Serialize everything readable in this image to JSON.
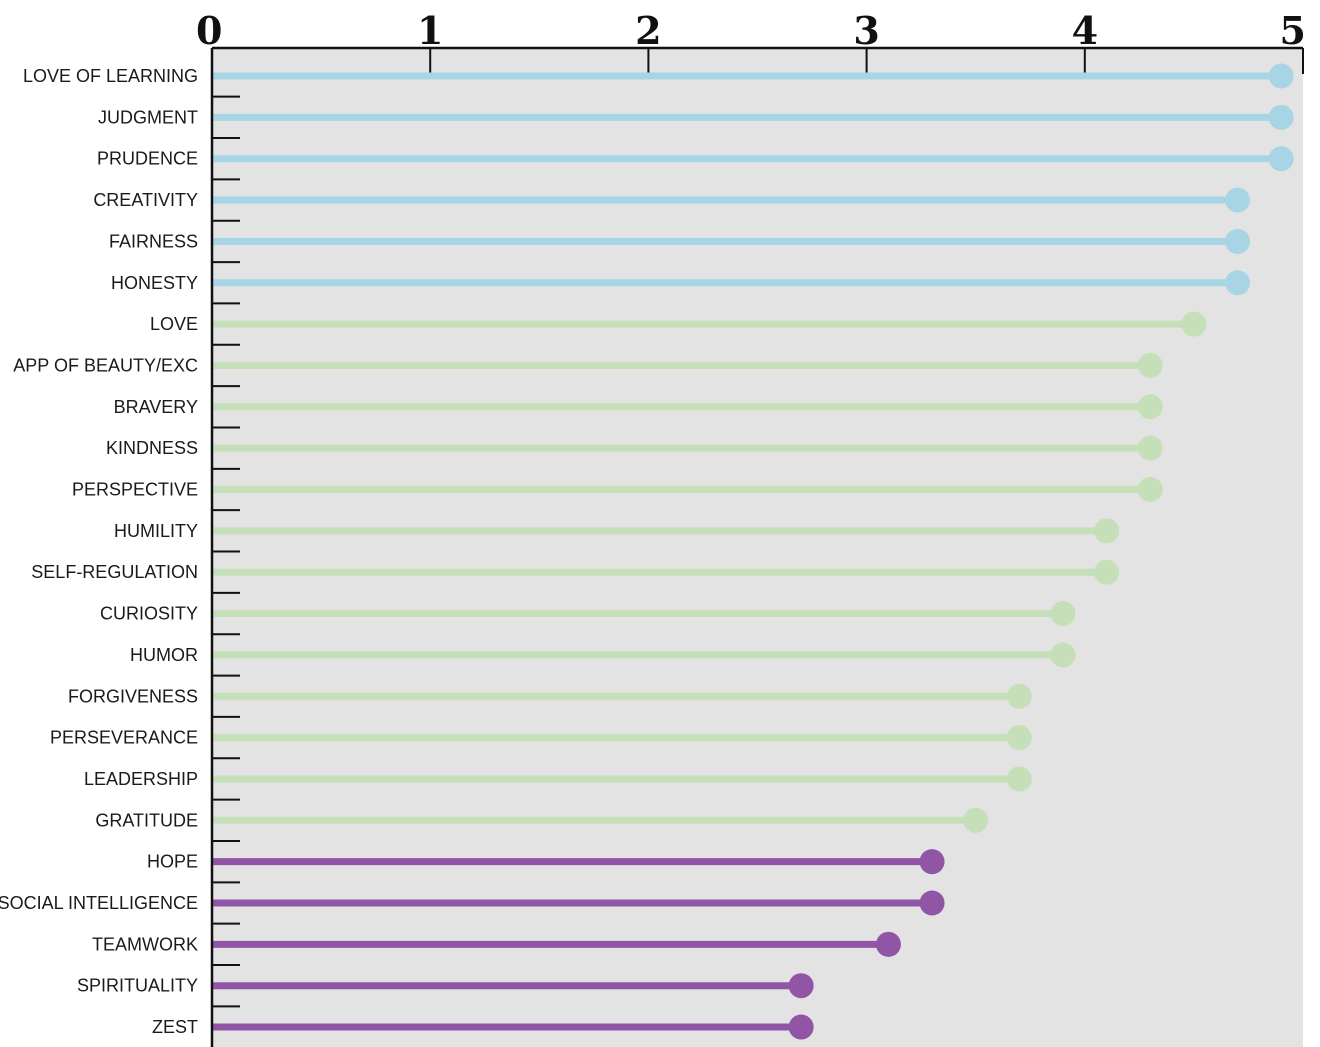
{
  "chart_data": {
    "type": "lollipop",
    "categories": [
      "LOVE OF LEARNING",
      "JUDGMENT",
      "PRUDENCE",
      "CREATIVITY",
      "FAIRNESS",
      "HONESTY",
      "LOVE",
      "APP OF BEAUTY/EXC",
      "BRAVERY",
      "KINDNESS",
      "PERSPECTIVE",
      "HUMILITY",
      "SELF-REGULATION",
      "CURIOSITY",
      "HUMOR",
      "FORGIVENESS",
      "PERSEVERANCE",
      "LEADERSHIP",
      "GRATITUDE",
      "HOPE",
      "SOCIAL INTELLIGENCE",
      "TEAMWORK",
      "SPIRITUALITY",
      "ZEST"
    ],
    "values": [
      4.9,
      4.9,
      4.9,
      4.7,
      4.7,
      4.7,
      4.5,
      4.3,
      4.3,
      4.3,
      4.3,
      4.1,
      4.1,
      3.9,
      3.9,
      3.7,
      3.7,
      3.7,
      3.5,
      3.3,
      3.3,
      3.1,
      2.7,
      2.7
    ],
    "groups": [
      "top",
      "top",
      "top",
      "top",
      "top",
      "top",
      "mid",
      "mid",
      "mid",
      "mid",
      "mid",
      "mid",
      "mid",
      "mid",
      "mid",
      "mid",
      "mid",
      "mid",
      "mid",
      "low",
      "low",
      "low",
      "low",
      "low"
    ],
    "group_colors": {
      "top": "#a8d5e5",
      "mid": "#c5dfb9",
      "low": "#9155a6"
    },
    "xlim": [
      0,
      5
    ],
    "x_ticks": [
      "0",
      "1",
      "2",
      "3",
      "4",
      "5"
    ],
    "tick_values": [
      0,
      1,
      2,
      3,
      4,
      5
    ],
    "axis_position": "top",
    "plot_background": "#e3e3e3",
    "title": "",
    "xlabel": "",
    "ylabel": ""
  }
}
